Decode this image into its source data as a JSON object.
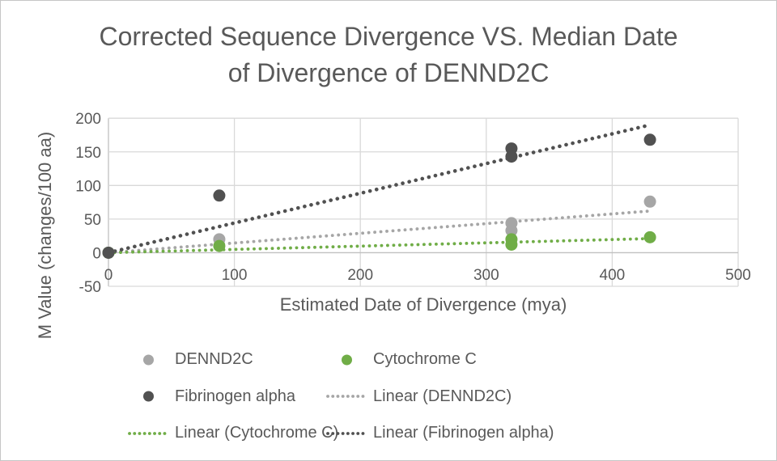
{
  "chart_data": {
    "type": "scatter",
    "title": "Corrected Sequence Divergence VS. Median Date of Divergence of DENND2C",
    "title_lines": [
      "Corrected Sequence Divergence VS. Median Date",
      "of Divergence of DENND2C"
    ],
    "xlabel": "Estimated Date of Divergence (mya)",
    "ylabel": "M Value (changes/100 aa)",
    "xlim": [
      0,
      500
    ],
    "ylim": [
      -50,
      200
    ],
    "x_ticks": [
      0,
      100,
      200,
      300,
      400,
      500
    ],
    "y_ticks": [
      -50,
      0,
      50,
      100,
      150,
      200
    ],
    "grid": true,
    "series": [
      {
        "name": "DENND2C",
        "color": "#a6a6a6",
        "points": [
          [
            0,
            0
          ],
          [
            88,
            20
          ],
          [
            320,
            44
          ],
          [
            320,
            33
          ],
          [
            430,
            76
          ]
        ]
      },
      {
        "name": "Cytochrome C",
        "color": "#70ad47",
        "points": [
          [
            0,
            0
          ],
          [
            88,
            10
          ],
          [
            320,
            20
          ],
          [
            320,
            12
          ],
          [
            430,
            23
          ]
        ]
      },
      {
        "name": "Fibrinogen alpha",
        "color": "#515151",
        "points": [
          [
            0,
            0
          ],
          [
            88,
            85
          ],
          [
            320,
            155
          ],
          [
            320,
            143
          ],
          [
            430,
            168
          ]
        ]
      }
    ],
    "trendlines": [
      {
        "name": "Linear (DENND2C)",
        "color": "#a6a6a6",
        "x": [
          0,
          430
        ],
        "y": [
          0,
          62
        ]
      },
      {
        "name": "Linear (Cytochrome C)",
        "color": "#70ad47",
        "x": [
          0,
          430
        ],
        "y": [
          0,
          21
        ]
      },
      {
        "name": "Linear (Fibrinogen alpha)",
        "color": "#515151",
        "x": [
          0,
          430
        ],
        "y": [
          0,
          190
        ]
      }
    ],
    "legend": {
      "position": "bottom",
      "items": [
        {
          "label": "DENND2C",
          "type": "marker",
          "color": "#a6a6a6"
        },
        {
          "label": "Cytochrome C",
          "type": "marker",
          "color": "#70ad47"
        },
        {
          "label": "Fibrinogen alpha",
          "type": "marker",
          "color": "#515151"
        },
        {
          "label": "Linear (DENND2C)",
          "type": "line",
          "color": "#a6a6a6"
        },
        {
          "label": "Linear (Cytochrome C)",
          "type": "line",
          "color": "#70ad47"
        },
        {
          "label": "Linear (Fibrinogen alpha)",
          "type": "line",
          "color": "#515151"
        }
      ]
    },
    "colors": {
      "text": "#595959",
      "gridline": "#d9d9d9",
      "axis_line": "#c0c0c0",
      "background": "#ffffff",
      "frame_border": "#c6c6c6"
    }
  }
}
